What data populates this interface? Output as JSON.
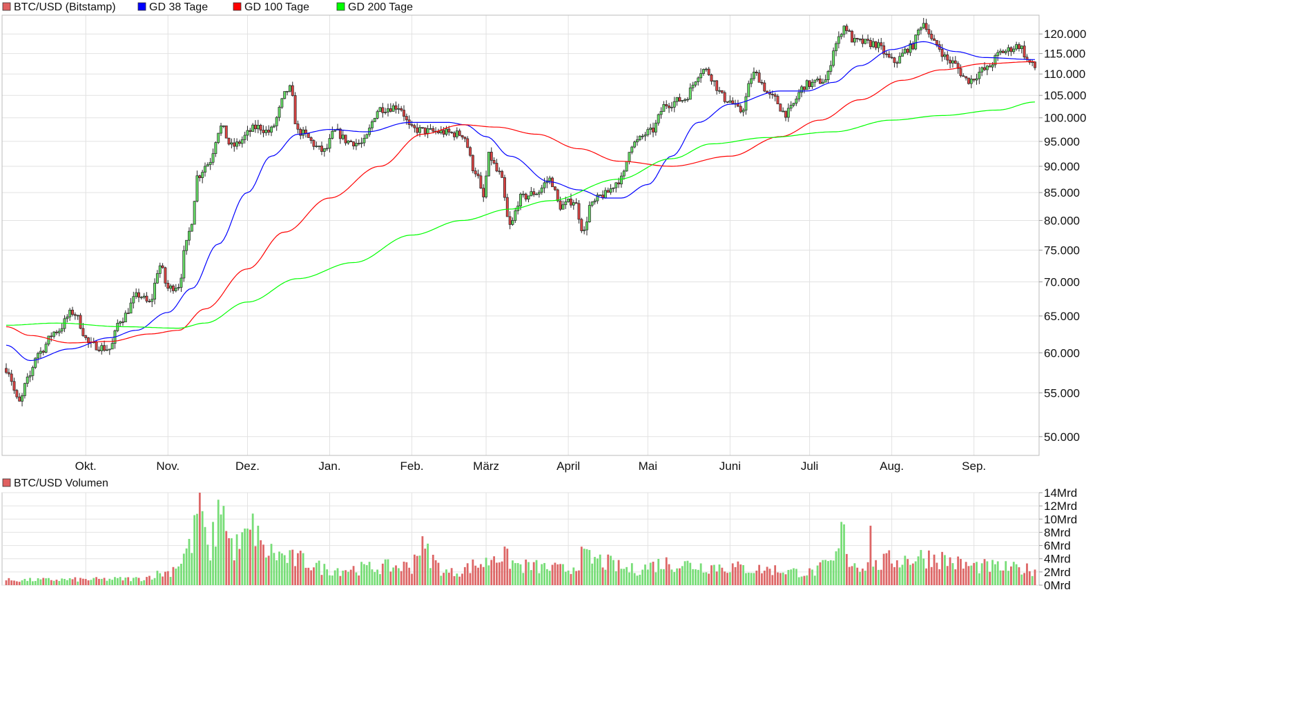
{
  "price_legend": [
    {
      "label": "BTC/USD (Bitstamp)",
      "color": "#e06060"
    },
    {
      "label": "GD 38 Tage",
      "color": "#0000ff"
    },
    {
      "label": "GD 100 Tage",
      "color": "#ff0000"
    },
    {
      "label": "GD 200 Tage",
      "color": "#00ff00"
    }
  ],
  "volume_legend": {
    "label": "BTC/USD Volumen",
    "color": "#e06060"
  },
  "colors": {
    "up": "#66dd66",
    "down": "#dd4444",
    "grid": "#e2e2e2",
    "wick": "#222222"
  },
  "chart_data": [
    {
      "type": "candlestick",
      "title": "BTC/USD (Bitstamp)",
      "y_scale": "log",
      "ylim": [
        48000,
        125000
      ],
      "y_ticks": [
        50000,
        55000,
        60000,
        65000,
        70000,
        75000,
        80000,
        85000,
        90000,
        95000,
        100000,
        105000,
        110000,
        115000,
        120000
      ],
      "y_tick_labels": [
        "50.000",
        "55.000",
        "60.000",
        "65.000",
        "70.000",
        "75.000",
        "80.000",
        "85.000",
        "90.000",
        "95.000",
        "100.000",
        "105.000",
        "110.000",
        "115.000",
        "120.000"
      ],
      "x_range": [
        "2024-09-01",
        "2025-09-24"
      ],
      "x_tick_labels": [
        "Okt.",
        "Nov.",
        "Dez.",
        "Jan.",
        "Feb.",
        "März",
        "April",
        "Mai",
        "Juni",
        "Juli",
        "Aug.",
        "Sep."
      ],
      "x_tick_dates": [
        "2024-10-01",
        "2024-11-01",
        "2024-12-01",
        "2025-01-01",
        "2025-02-01",
        "2025-03-01",
        "2025-04-01",
        "2025-05-01",
        "2025-06-01",
        "2025-07-01",
        "2025-08-01",
        "2025-09-01"
      ],
      "close_anchors": [
        [
          "2024-09-01",
          58000
        ],
        [
          "2024-09-06",
          53800
        ],
        [
          "2024-09-09",
          56500
        ],
        [
          "2024-09-13",
          60000
        ],
        [
          "2024-09-20",
          62900
        ],
        [
          "2024-09-26",
          65500
        ],
        [
          "2024-10-03",
          61000
        ],
        [
          "2024-10-10",
          60500
        ],
        [
          "2024-10-14",
          64500
        ],
        [
          "2024-10-21",
          68000
        ],
        [
          "2024-10-25",
          66800
        ],
        [
          "2024-10-29",
          72500
        ],
        [
          "2024-11-01",
          69000
        ],
        [
          "2024-11-05",
          69500
        ],
        [
          "2024-11-08",
          76000
        ],
        [
          "2024-11-10",
          80000
        ],
        [
          "2024-11-12",
          88000
        ],
        [
          "2024-11-16",
          90500
        ],
        [
          "2024-11-21",
          98000
        ],
        [
          "2024-11-25",
          94000
        ],
        [
          "2024-12-05",
          98000
        ],
        [
          "2024-12-09",
          97000
        ],
        [
          "2024-12-17",
          106500
        ],
        [
          "2024-12-20",
          97000
        ],
        [
          "2024-12-30",
          93000
        ],
        [
          "2025-01-03",
          97000
        ],
        [
          "2025-01-08",
          95000
        ],
        [
          "2025-01-13",
          94500
        ],
        [
          "2025-01-20",
          102000
        ],
        [
          "2025-01-27",
          102500
        ],
        [
          "2025-02-01",
          97500
        ],
        [
          "2025-02-10",
          97000
        ],
        [
          "2025-02-20",
          96500
        ],
        [
          "2025-02-25",
          89000
        ],
        [
          "2025-02-28",
          84000
        ],
        [
          "2025-03-02",
          92000
        ],
        [
          "2025-03-06",
          88500
        ],
        [
          "2025-03-10",
          79000
        ],
        [
          "2025-03-14",
          84000
        ],
        [
          "2025-03-20",
          85000
        ],
        [
          "2025-03-25",
          87500
        ],
        [
          "2025-03-29",
          82500
        ],
        [
          "2025-04-03",
          83500
        ],
        [
          "2025-04-07",
          78000
        ],
        [
          "2025-04-09",
          82500
        ],
        [
          "2025-04-14",
          84500
        ],
        [
          "2025-04-21",
          87500
        ],
        [
          "2025-04-25",
          94500
        ],
        [
          "2025-05-02",
          97000
        ],
        [
          "2025-05-08",
          103000
        ],
        [
          "2025-05-14",
          104000
        ],
        [
          "2025-05-22",
          111000
        ],
        [
          "2025-05-31",
          104000
        ],
        [
          "2025-06-05",
          101500
        ],
        [
          "2025-06-10",
          110000
        ],
        [
          "2025-06-17",
          104500
        ],
        [
          "2025-06-22",
          101000
        ],
        [
          "2025-06-30",
          107500
        ],
        [
          "2025-07-07",
          108500
        ],
        [
          "2025-07-11",
          117500
        ],
        [
          "2025-07-14",
          122000
        ],
        [
          "2025-07-18",
          118000
        ],
        [
          "2025-07-25",
          117500
        ],
        [
          "2025-08-02",
          113000
        ],
        [
          "2025-08-08",
          116500
        ],
        [
          "2025-08-13",
          123000
        ],
        [
          "2025-08-17",
          117500
        ],
        [
          "2025-08-23",
          113000
        ],
        [
          "2025-08-30",
          108500
        ],
        [
          "2025-09-05",
          111000
        ],
        [
          "2025-09-12",
          115500
        ],
        [
          "2025-09-18",
          117000
        ],
        [
          "2025-09-22",
          112700
        ],
        [
          "2025-09-24",
          111500
        ]
      ],
      "overlays": [
        {
          "name": "GD 38 Tage",
          "color": "#0000ff",
          "anchors": [
            [
              "2024-09-01",
              61000
            ],
            [
              "2024-09-10",
              59000
            ],
            [
              "2024-09-25",
              60500
            ],
            [
              "2024-10-10",
              62000
            ],
            [
              "2024-10-20",
              63000
            ],
            [
              "2024-11-01",
              65500
            ],
            [
              "2024-11-10",
              69000
            ],
            [
              "2024-11-20",
              76000
            ],
            [
              "2024-12-01",
              85000
            ],
            [
              "2024-12-10",
              92000
            ],
            [
              "2024-12-20",
              96500
            ],
            [
              "2025-01-01",
              97500
            ],
            [
              "2025-01-15",
              97000
            ],
            [
              "2025-01-31",
              99000
            ],
            [
              "2025-02-15",
              99000
            ],
            [
              "2025-02-21",
              98500
            ],
            [
              "2025-03-01",
              96000
            ],
            [
              "2025-03-10",
              92000
            ],
            [
              "2025-03-25",
              87000
            ],
            [
              "2025-04-05",
              85500
            ],
            [
              "2025-04-15",
              84000
            ],
            [
              "2025-04-21",
              84000
            ],
            [
              "2025-05-01",
              86500
            ],
            [
              "2025-05-10",
              92000
            ],
            [
              "2025-05-20",
              99000
            ],
            [
              "2025-06-01",
              103000
            ],
            [
              "2025-06-20",
              106000
            ],
            [
              "2025-06-30",
              106000
            ],
            [
              "2025-07-10",
              108000
            ],
            [
              "2025-07-20",
              112000
            ],
            [
              "2025-08-01",
              116000
            ],
            [
              "2025-08-13",
              118000
            ],
            [
              "2025-08-25",
              115500
            ],
            [
              "2025-09-05",
              114000
            ],
            [
              "2025-09-24",
              113500
            ]
          ]
        },
        {
          "name": "GD 100 Tage",
          "color": "#ff0000",
          "anchors": [
            [
              "2024-09-01",
              63500
            ],
            [
              "2024-09-10",
              62300
            ],
            [
              "2024-09-25",
              61300
            ],
            [
              "2024-10-10",
              61500
            ],
            [
              "2024-10-25",
              62500
            ],
            [
              "2024-11-05",
              63000
            ],
            [
              "2024-11-15",
              66000
            ],
            [
              "2024-12-01",
              72000
            ],
            [
              "2024-12-15",
              78000
            ],
            [
              "2025-01-01",
              84000
            ],
            [
              "2025-01-20",
              90000
            ],
            [
              "2025-02-05",
              96500
            ],
            [
              "2025-02-20",
              98500
            ],
            [
              "2025-03-05",
              98000
            ],
            [
              "2025-03-20",
              96500
            ],
            [
              "2025-04-05",
              93500
            ],
            [
              "2025-04-20",
              91000
            ],
            [
              "2025-05-10",
              90000
            ],
            [
              "2025-06-01",
              92000
            ],
            [
              "2025-06-20",
              96000
            ],
            [
              "2025-07-05",
              99500
            ],
            [
              "2025-07-20",
              104000
            ],
            [
              "2025-08-05",
              108500
            ],
            [
              "2025-08-20",
              111000
            ],
            [
              "2025-09-05",
              112500
            ],
            [
              "2025-09-24",
              113000
            ]
          ]
        },
        {
          "name": "GD 200 Tage",
          "color": "#00ff00",
          "anchors": [
            [
              "2024-09-01",
              63700
            ],
            [
              "2024-09-20",
              64000
            ],
            [
              "2024-10-15",
              63500
            ],
            [
              "2024-11-05",
              63300
            ],
            [
              "2024-11-15",
              64000
            ],
            [
              "2024-12-01",
              67000
            ],
            [
              "2024-12-20",
              70500
            ],
            [
              "2025-01-10",
              73000
            ],
            [
              "2025-02-01",
              77500
            ],
            [
              "2025-02-20",
              80000
            ],
            [
              "2025-03-10",
              82000
            ],
            [
              "2025-03-25",
              83500
            ],
            [
              "2025-04-20",
              87500
            ],
            [
              "2025-05-10",
              91500
            ],
            [
              "2025-05-25",
              94500
            ],
            [
              "2025-06-15",
              95800
            ],
            [
              "2025-07-10",
              97000
            ],
            [
              "2025-08-01",
              99500
            ],
            [
              "2025-08-20",
              100500
            ],
            [
              "2025-09-10",
              101700
            ],
            [
              "2025-09-24",
              103500
            ]
          ]
        }
      ]
    },
    {
      "type": "bar",
      "title": "BTC/USD Volumen",
      "ylim": [
        0,
        14
      ],
      "y_unit": "Mrd",
      "y_ticks": [
        0,
        2,
        4,
        6,
        8,
        10,
        12,
        14
      ],
      "y_tick_labels": [
        "0Mrd",
        "2Mrd",
        "4Mrd",
        "6Mrd",
        "8Mrd",
        "10Mrd",
        "12Mrd",
        "14Mrd"
      ],
      "volume_anchors": [
        [
          "2024-09-01",
          0.8
        ],
        [
          "2024-10-01",
          0.9
        ],
        [
          "2024-10-20",
          1.0
        ],
        [
          "2024-11-01",
          2.0
        ],
        [
          "2024-11-05",
          3.5
        ],
        [
          "2024-11-10",
          7.0
        ],
        [
          "2024-11-12",
          10.5
        ],
        [
          "2024-11-14",
          8.0
        ],
        [
          "2024-11-16",
          5.0
        ],
        [
          "2024-11-21",
          11.5
        ],
        [
          "2024-11-22",
          8.5
        ],
        [
          "2024-11-26",
          6.0
        ],
        [
          "2024-12-05",
          9.0
        ],
        [
          "2024-12-06",
          5.5
        ],
        [
          "2024-12-20",
          4.0
        ],
        [
          "2025-01-01",
          2.5
        ],
        [
          "2025-02-01",
          3.0
        ],
        [
          "2025-02-03",
          6.0
        ],
        [
          "2025-02-15",
          2.0
        ],
        [
          "2025-03-01",
          3.5
        ],
        [
          "2025-03-04",
          5.0
        ],
        [
          "2025-03-15",
          3.0
        ],
        [
          "2025-04-01",
          2.5
        ],
        [
          "2025-04-07",
          4.5
        ],
        [
          "2025-04-10",
          4.0
        ],
        [
          "2025-04-25",
          2.5
        ],
        [
          "2025-05-08",
          3.5
        ],
        [
          "2025-05-25",
          3.0
        ],
        [
          "2025-06-15",
          2.5
        ],
        [
          "2025-07-01",
          2.0
        ],
        [
          "2025-07-10",
          3.5
        ],
        [
          "2025-07-14",
          8.5
        ],
        [
          "2025-07-16",
          3.5
        ],
        [
          "2025-07-25",
          3.0
        ],
        [
          "2025-08-01",
          4.0
        ],
        [
          "2025-08-15",
          4.5
        ],
        [
          "2025-09-01",
          3.0
        ],
        [
          "2025-09-24",
          2.5
        ]
      ],
      "volume_spikes": [
        [
          "2024-11-11",
          10.6
        ],
        [
          "2024-11-12",
          10.8
        ],
        [
          "2024-11-13",
          14.0
        ],
        [
          "2024-11-14",
          11.2
        ],
        [
          "2024-11-15",
          8.8
        ],
        [
          "2024-11-21",
          10.7
        ],
        [
          "2024-11-22",
          12.0
        ],
        [
          "2024-12-05",
          9.0
        ],
        [
          "2024-11-09",
          7.0
        ],
        [
          "2025-07-14",
          9.2
        ],
        [
          "2025-07-24",
          9.0
        ]
      ]
    }
  ]
}
